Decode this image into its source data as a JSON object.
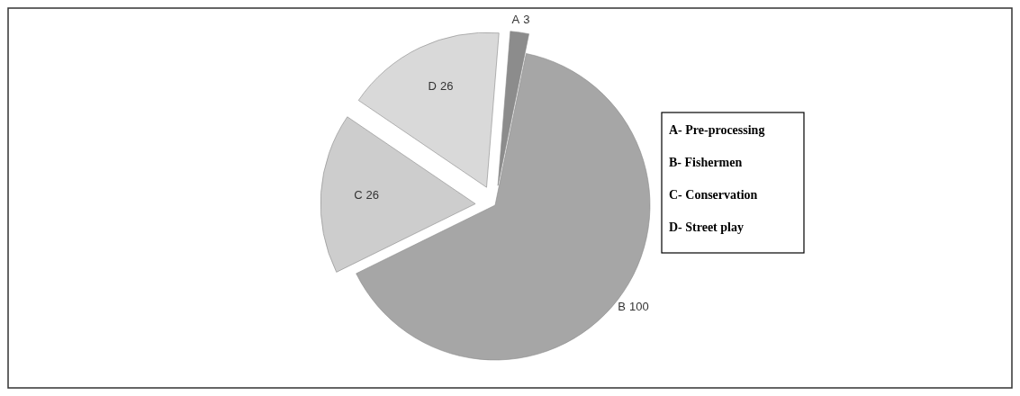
{
  "chart_data": {
    "type": "pie",
    "categories": [
      "A",
      "B",
      "C",
      "D"
    ],
    "values": [
      3,
      100,
      26,
      26
    ],
    "colors": [
      "#8c8c8c",
      "#a6a6a6",
      "#cdcdcd",
      "#d9d9d9"
    ],
    "data_labels": true,
    "annotations": [
      "A- Pre-processing",
      "B- Fishermen",
      "C- Conservation",
      "D- Street play"
    ]
  }
}
